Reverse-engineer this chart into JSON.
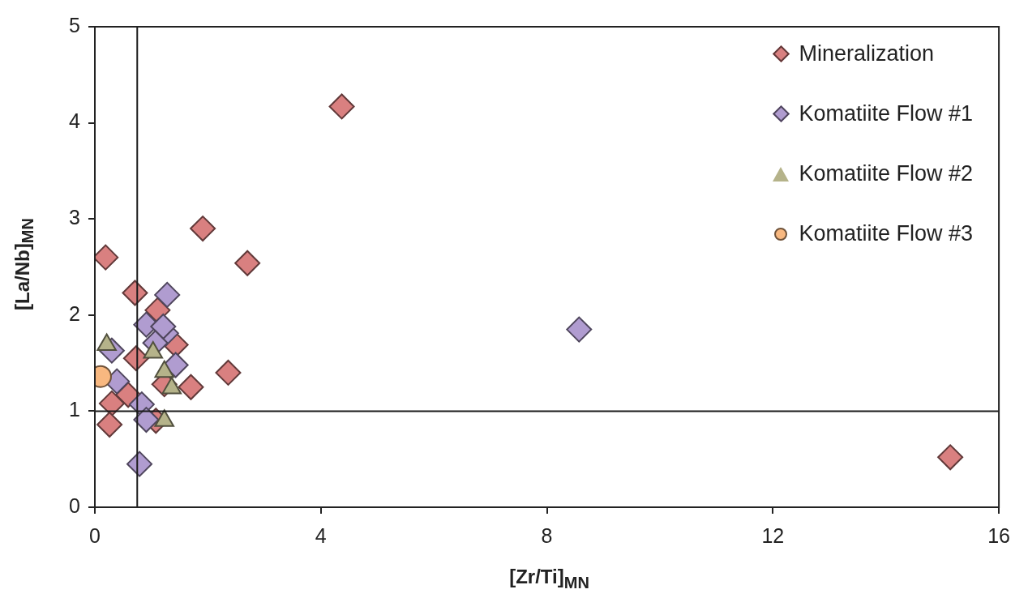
{
  "chart_data": {
    "type": "scatter",
    "xlabel": "[Zr/Ti]$_{MN}$",
    "ylabel": "[La/Nb]$_{MN}$",
    "xlim": [
      0,
      16
    ],
    "xticks": [
      0,
      4,
      8,
      12,
      16
    ],
    "ylim": [
      0,
      5
    ],
    "yticks": [
      0,
      1,
      2,
      3,
      4,
      5
    ],
    "grid": false,
    "legend": "top right",
    "ref_lines": [
      {
        "axis": "x",
        "value": 0.75,
        "color": "#1a1a1a"
      },
      {
        "axis": "y",
        "value": 1,
        "color": "#1a1a1a"
      }
    ],
    "series": [
      {
        "name": "Mineralization",
        "color": "#d98080",
        "marker": "diamond",
        "x": [
          0.19,
          4.37,
          1.91,
          2.7,
          15.14,
          2.36,
          1.7,
          0.71,
          1.11,
          1.43,
          0.73,
          1.23,
          0.59,
          0.3,
          0.26,
          1.08
        ],
        "values": [
          2.6,
          4.17,
          2.9,
          2.54,
          0.52,
          1.4,
          1.25,
          2.23,
          2.05,
          1.69,
          1.55,
          1.28,
          1.17,
          1.08,
          0.86,
          0.9
        ]
      },
      {
        "name": "Komatiite Flow #1",
        "color": "#b09cd0",
        "marker": "diamond",
        "x": [
          1.28,
          0.91,
          1.26,
          1.21,
          1.07,
          0.3,
          1.43,
          0.39,
          0.83,
          0.91,
          0.79,
          8.57
        ],
        "values": [
          2.21,
          1.9,
          1.81,
          1.88,
          1.71,
          1.63,
          1.48,
          1.31,
          1.07,
          0.91,
          0.45,
          1.85
        ]
      },
      {
        "name": "Komatiite Flow #2",
        "color": "#b5b38a",
        "marker": "triangle",
        "x": [
          0.21,
          1.03,
          1.23,
          1.36,
          1.23
        ],
        "values": [
          1.69,
          1.61,
          1.41,
          1.24,
          0.9
        ]
      },
      {
        "name": "Komatiite Flow #3",
        "color": "#f8b880",
        "marker": "circle",
        "x": [
          0.1
        ],
        "values": [
          1.36
        ]
      }
    ]
  }
}
